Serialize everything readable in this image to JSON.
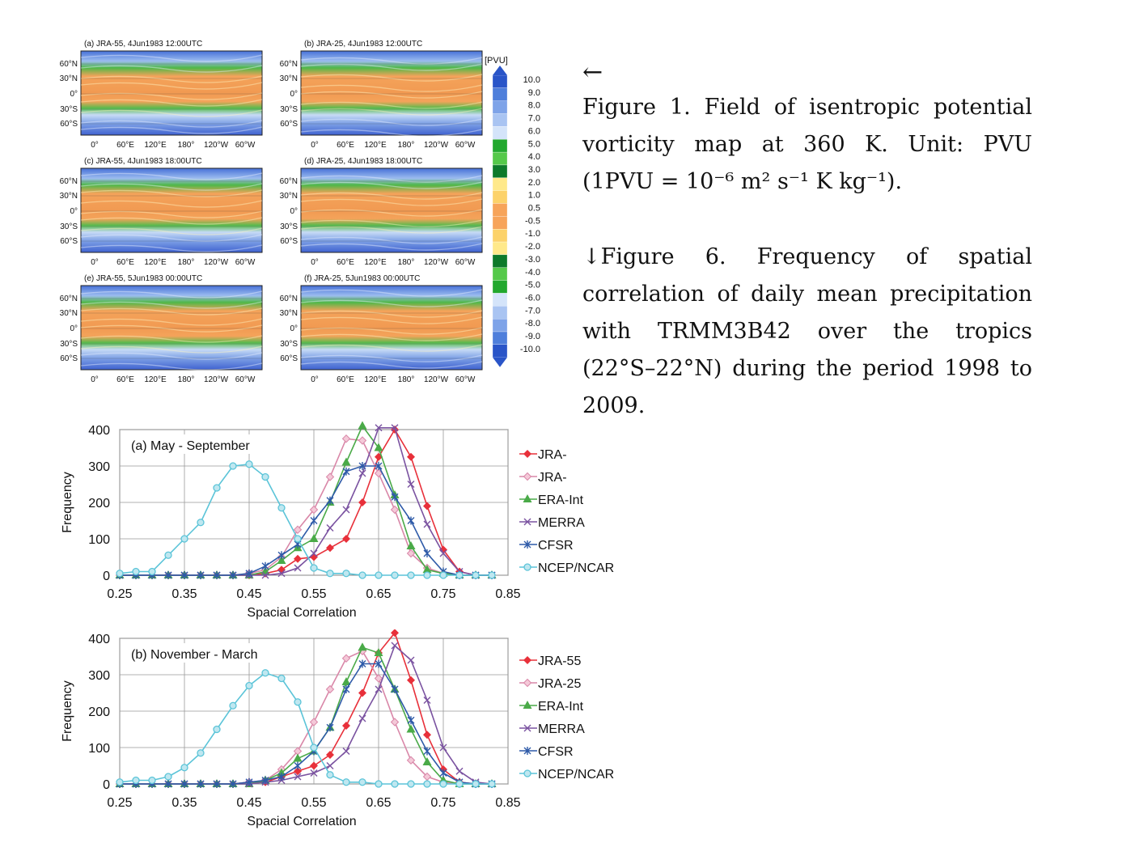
{
  "maps": {
    "unit_label": "[PVU]",
    "colorbar_ticks": [
      "10.0",
      "9.0",
      "8.0",
      "7.0",
      "6.0",
      "5.0",
      "4.0",
      "3.0",
      "2.0",
      "1.0",
      "0.5",
      "-0.5",
      "-1.0",
      "-2.0",
      "-3.0",
      "-4.0",
      "-5.0",
      "-6.0",
      "-7.0",
      "-8.0",
      "-9.0",
      "-10.0"
    ],
    "colorbar_colors": [
      "#2a55c8",
      "#4f7fdb",
      "#7ea3e8",
      "#a9c4f2",
      "#d4e4fa",
      "#22a82e",
      "#55c94a",
      "#0d7a2a",
      "#ffe98a",
      "#fcd26a",
      "#f7a45a",
      "#f7a45a",
      "#fcd26a",
      "#ffe98a",
      "#0d7a2a",
      "#55c94a",
      "#22a82e",
      "#d4e4fa",
      "#a9c4f2",
      "#7ea3e8",
      "#4f7fdb",
      "#2a55c8"
    ],
    "lat_labels": [
      "60°N",
      "30°N",
      "0°",
      "30°S",
      "60°S"
    ],
    "lon_labels": [
      "0°",
      "60°E",
      "120°E",
      "180°",
      "120°W",
      "60°W"
    ],
    "panels": [
      {
        "title": "(a) JRA-55, 4Jun1983 12:00UTC"
      },
      {
        "title": "(b) JRA-25, 4Jun1983 12:00UTC"
      },
      {
        "title": "(c) JRA-55, 4Jun1983 18:00UTC"
      },
      {
        "title": "(d) JRA-25, 4Jun1983 18:00UTC"
      },
      {
        "title": "(e) JRA-55, 5Jun1983 00:00UTC"
      },
      {
        "title": "(f) JRA-25, 5Jun1983 00:00UTC"
      }
    ]
  },
  "caption": {
    "arrow_left": "←",
    "figure1": "Figure 1. Field of isentropic potential vorticity map at 360 K. Unit: PVU (1PVU = 10⁻⁶ m² s⁻¹ K kg⁻¹).",
    "figure6": "↓Figure 6. Frequency of spatial correlation of daily mean precipitation with TRMM3B42 over the tropics (22°S–22°N) during the period 1998 to 2009."
  },
  "chart_data": [
    {
      "type": "line",
      "title": "(a) May - September",
      "xlabel": "Spacial Correlation",
      "ylabel": "Frequency",
      "xlim": [
        0.25,
        0.85
      ],
      "ylim": [
        0,
        400
      ],
      "xticks": [
        0.25,
        0.35,
        0.45,
        0.55,
        0.65,
        0.75,
        0.85
      ],
      "yticks": [
        0,
        100,
        200,
        300,
        400
      ],
      "grid": true,
      "legend_position": "right",
      "x": [
        0.25,
        0.275,
        0.3,
        0.325,
        0.35,
        0.375,
        0.4,
        0.425,
        0.45,
        0.475,
        0.5,
        0.525,
        0.55,
        0.575,
        0.6,
        0.625,
        0.65,
        0.675,
        0.7,
        0.725,
        0.75,
        0.775,
        0.8,
        0.825
      ],
      "series": [
        {
          "name": "JRA-",
          "color": "#e8303a",
          "marker": "diamond",
          "values": [
            0,
            0,
            0,
            0,
            0,
            0,
            0,
            0,
            0,
            5,
            15,
            45,
            50,
            75,
            100,
            200,
            325,
            400,
            325,
            190,
            70,
            10,
            0,
            0
          ]
        },
        {
          "name": "JRA-",
          "color": "#d987a8",
          "marker": "diamond-open",
          "values": [
            0,
            0,
            0,
            0,
            0,
            0,
            0,
            0,
            5,
            15,
            50,
            125,
            180,
            270,
            375,
            370,
            280,
            180,
            60,
            20,
            5,
            0,
            0,
            0
          ]
        },
        {
          "name": "ERA-Int",
          "color": "#4aaa48",
          "marker": "triangle",
          "values": [
            0,
            0,
            0,
            0,
            0,
            0,
            0,
            0,
            0,
            10,
            40,
            75,
            100,
            200,
            310,
            410,
            350,
            220,
            80,
            15,
            5,
            0,
            0,
            0
          ]
        },
        {
          "name": "MERRA",
          "color": "#7a52a0",
          "marker": "x",
          "values": [
            0,
            0,
            0,
            0,
            0,
            0,
            0,
            0,
            0,
            0,
            5,
            20,
            60,
            130,
            180,
            280,
            405,
            405,
            250,
            140,
            60,
            10,
            0,
            0
          ]
        },
        {
          "name": "CFSR",
          "color": "#2e5aa8",
          "marker": "star",
          "values": [
            0,
            0,
            0,
            0,
            0,
            0,
            0,
            0,
            5,
            25,
            55,
            85,
            150,
            205,
            285,
            300,
            300,
            215,
            150,
            60,
            10,
            0,
            0,
            0
          ]
        },
        {
          "name": "NCEP/NCAR",
          "color": "#5bc4d8",
          "marker": "circle",
          "values": [
            5,
            10,
            10,
            55,
            100,
            145,
            240,
            300,
            305,
            270,
            185,
            100,
            20,
            5,
            5,
            0,
            0,
            0,
            0,
            0,
            0,
            0,
            0,
            0
          ]
        }
      ]
    },
    {
      "type": "line",
      "title": "(b) November - March",
      "xlabel": "Spacial Correlation",
      "ylabel": "Frequency",
      "xlim": [
        0.25,
        0.85
      ],
      "ylim": [
        0,
        400
      ],
      "xticks": [
        0.25,
        0.35,
        0.45,
        0.55,
        0.65,
        0.75,
        0.85
      ],
      "yticks": [
        0,
        100,
        200,
        300,
        400
      ],
      "grid": true,
      "legend_position": "right",
      "x": [
        0.25,
        0.275,
        0.3,
        0.325,
        0.35,
        0.375,
        0.4,
        0.425,
        0.45,
        0.475,
        0.5,
        0.525,
        0.55,
        0.575,
        0.6,
        0.625,
        0.65,
        0.675,
        0.7,
        0.725,
        0.75,
        0.775,
        0.8,
        0.825
      ],
      "series": [
        {
          "name": "JRA-55",
          "color": "#e8303a",
          "marker": "diamond",
          "values": [
            0,
            0,
            0,
            0,
            0,
            0,
            0,
            0,
            5,
            5,
            20,
            35,
            50,
            80,
            160,
            250,
            360,
            415,
            285,
            135,
            40,
            5,
            0,
            0
          ]
        },
        {
          "name": "JRA-25",
          "color": "#d987a8",
          "marker": "diamond-open",
          "values": [
            0,
            0,
            0,
            0,
            0,
            0,
            0,
            0,
            5,
            10,
            40,
            90,
            170,
            260,
            345,
            365,
            290,
            170,
            65,
            20,
            5,
            0,
            0,
            0
          ]
        },
        {
          "name": "ERA-Int",
          "color": "#4aaa48",
          "marker": "triangle",
          "values": [
            0,
            0,
            0,
            0,
            0,
            0,
            0,
            0,
            0,
            10,
            30,
            70,
            90,
            155,
            280,
            375,
            360,
            260,
            150,
            60,
            10,
            0,
            0,
            0
          ]
        },
        {
          "name": "MERRA",
          "color": "#7a52a0",
          "marker": "x",
          "values": [
            0,
            0,
            0,
            0,
            0,
            0,
            0,
            0,
            0,
            5,
            10,
            20,
            30,
            50,
            90,
            180,
            260,
            380,
            340,
            230,
            100,
            35,
            5,
            0
          ]
        },
        {
          "name": "CFSR",
          "color": "#2e5aa8",
          "marker": "star",
          "values": [
            0,
            0,
            0,
            0,
            0,
            0,
            0,
            0,
            5,
            10,
            20,
            50,
            90,
            155,
            260,
            330,
            330,
            260,
            175,
            90,
            30,
            5,
            0,
            0
          ]
        },
        {
          "name": "NCEP/NCAR",
          "color": "#5bc4d8",
          "marker": "circle",
          "values": [
            5,
            10,
            10,
            20,
            45,
            85,
            150,
            215,
            270,
            305,
            290,
            225,
            100,
            25,
            5,
            5,
            0,
            0,
            0,
            0,
            0,
            0,
            0,
            0
          ]
        }
      ]
    }
  ]
}
